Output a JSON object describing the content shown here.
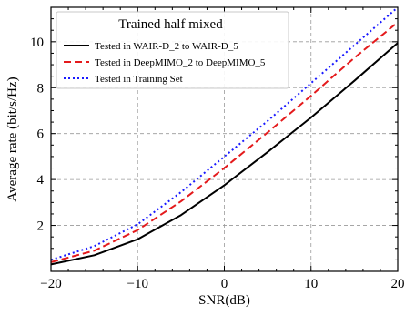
{
  "chart_data": {
    "type": "line",
    "title": "",
    "xlabel": "SNR(dB)",
    "ylabel": "Average rate (bit/s/Hz)",
    "xlim": [
      -20,
      20
    ],
    "ylim": [
      0,
      11.5
    ],
    "xticks": [
      -20,
      -10,
      0,
      10,
      20
    ],
    "yticks": [
      2,
      4,
      6,
      8,
      10
    ],
    "xtick_labels": [
      "−20",
      "−10",
      "0",
      "10",
      "20"
    ],
    "ytick_labels": [
      "2",
      "4",
      "6",
      "8",
      "10"
    ],
    "grid": true,
    "legend": {
      "title": "Trained half mixed",
      "placement": "top-left"
    },
    "x": [
      -20,
      -15,
      -10,
      -5,
      0,
      5,
      10,
      15,
      20
    ],
    "series": [
      {
        "name": "Tested in WAIR-D_2 to WAIR-D_5",
        "color": "#000000",
        "style": "solid",
        "values": [
          0.3,
          0.7,
          1.4,
          2.45,
          3.75,
          5.2,
          6.7,
          8.3,
          9.95
        ]
      },
      {
        "name": "Tested in DeepMIMO_2 to DeepMIMO_5",
        "color": "#e41a1c",
        "style": "dashed",
        "values": [
          0.4,
          0.9,
          1.8,
          3.05,
          4.5,
          6.05,
          7.65,
          9.3,
          10.85
        ]
      },
      {
        "name": "Tested in Training Set",
        "color": "#1a1aff",
        "style": "dotted",
        "values": [
          0.5,
          1.1,
          2.05,
          3.45,
          5.0,
          6.55,
          8.2,
          9.85,
          11.5
        ]
      }
    ]
  }
}
